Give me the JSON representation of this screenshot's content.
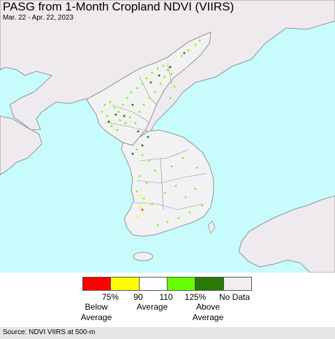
{
  "title": "PASG from 1-Month Cropland NDVI (VIIRS)",
  "date_range": "Mar. 22 - Apr. 22, 2023",
  "colors": {
    "sea": "#c8fcfc",
    "foreign_land": "#eeeaee",
    "korea_land": "#f2f2f2",
    "border": "#7a7a7a"
  },
  "legend": {
    "swatches": [
      {
        "name": "below-75",
        "color": "#ff0000"
      },
      {
        "name": "75-90",
        "color": "#ffff00"
      },
      {
        "name": "90-110",
        "color": "#ffffff"
      },
      {
        "name": "110-125",
        "color": "#66ff00"
      },
      {
        "name": "above-125",
        "color": "#2a7a08"
      },
      {
        "name": "no-data",
        "color": "#f0eef0"
      }
    ],
    "ticks": [
      "75%",
      "90",
      "110",
      "125%"
    ],
    "no_data_label": "No Data",
    "categories": {
      "below": "Below\nAverage",
      "average": "Average",
      "above": "Above\nAverage"
    }
  },
  "source": "Source: NDVI VIIRS at 500-m"
}
